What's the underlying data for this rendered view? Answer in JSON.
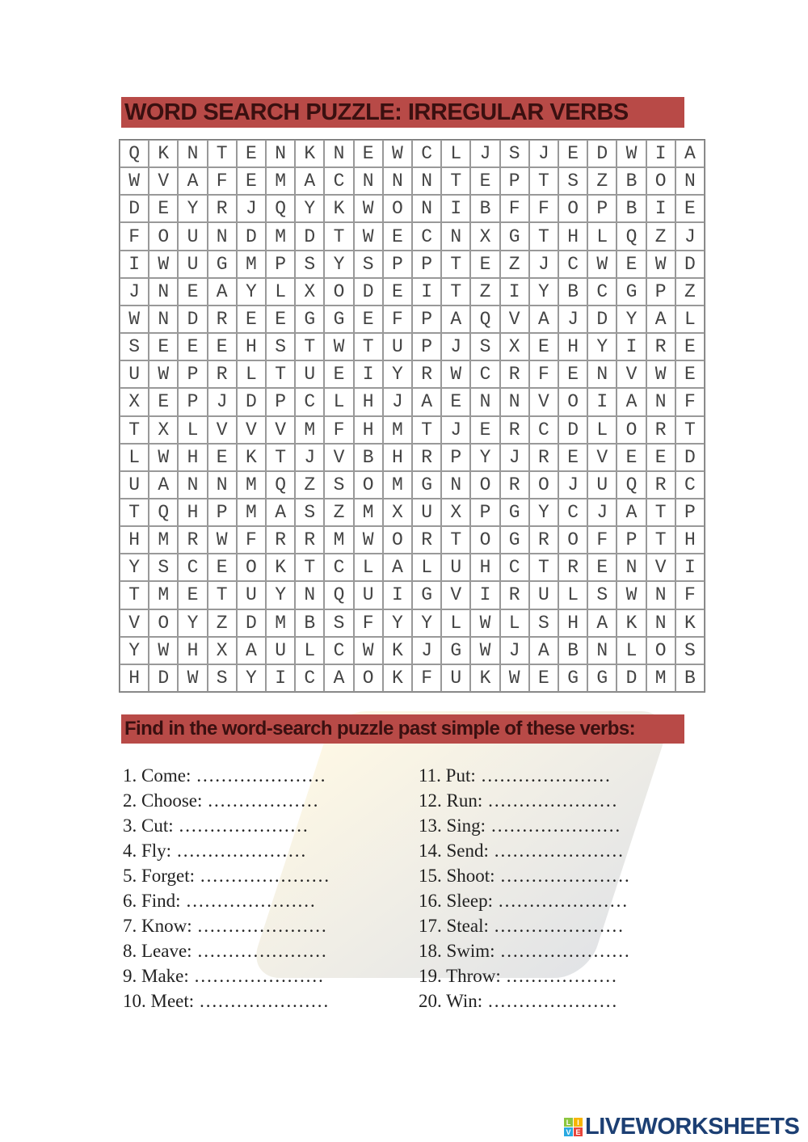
{
  "title": "WORD SEARCH PUZZLE: IRREGULAR VERBS",
  "grid": [
    "QKNTENKNEWCLJSJEDWIA",
    "WVAFEMACNNNTEPTSZBON",
    "DEYRJQYKWONIBFFOPBIE",
    "FOUNDMDTWECNXGTHLQZJ",
    "IWUGMPSYSPPTEZJCWEWD",
    "JNEAYLXODEITZIYBCGPZ",
    "WNDREEGGEFPAQVAJDYAL",
    "SEEEHSTWTUPJSXEHYIRE",
    "UWPRLTUEIYRWCRFENVWE",
    "XEPJDPCLHJAENNVOIANF",
    "TXLVVVMFHMTJERCDLORT",
    "LWHEKTJVBHRPYJREVEED",
    "UANNMQZSOMGNOROJUQRC",
    "TQHPMASZMXUXPGYCJATP",
    "HMRWFRRMWORTOGROFPTH",
    "YSCEOKTCLALUHCTRENVI",
    "TMETUYNQUIGVIRULSWNF",
    "VOYZDMBSFYYLWLSHAKNK",
    "YWHXAULCWKJGWJABNLOS",
    "HDWSYICAOKFUKWEGGDMB"
  ],
  "instructions": "Find in the word-search puzzle past simple of these verbs:",
  "verbs_left": [
    {
      "label": "1. Come:",
      "blank": "…………………"
    },
    {
      "label": "2. Choose:",
      "blank": "………………"
    },
    {
      "label": "3. Cut:",
      "blank": "…………………"
    },
    {
      "label": "4. Fly:",
      "blank": "…………………"
    },
    {
      "label": "5. Forget:",
      "blank": "…………………"
    },
    {
      "label": "6. Find:",
      "blank": "…………………"
    },
    {
      "label": "7. Know:",
      "blank": "…………………"
    },
    {
      "label": "8. Leave:",
      "blank": "…………………"
    },
    {
      "label": "9. Make:",
      "blank": "…………………"
    },
    {
      "label": "10. Meet:",
      "blank": "…………………"
    }
  ],
  "verbs_right": [
    {
      "label": "11. Put:",
      "blank": "…………………"
    },
    {
      "label": "12. Run:",
      "blank": "…………………"
    },
    {
      "label": "13. Sing:",
      "blank": "…………………"
    },
    {
      "label": "14. Send:",
      "blank": "…………………"
    },
    {
      "label": "15. Shoot:",
      "blank": "…………………"
    },
    {
      "label": "16. Sleep:",
      "blank": "…………………"
    },
    {
      "label": "17. Steal:",
      "blank": "…………………"
    },
    {
      "label": "18. Swim:",
      "blank": "…………………"
    },
    {
      "label": "19. Throw:",
      "blank": "………………"
    },
    {
      "label": "20. Win:",
      "blank": "…………………"
    }
  ],
  "logo": {
    "text": "LIVEWORKSHEETS",
    "badge_letters": [
      "L",
      "I",
      "V",
      "E"
    ],
    "badge_colors": [
      "#8cc63f",
      "#f7b500",
      "#29a9e1",
      "#e8463c"
    ],
    "color": "#1c3f73"
  },
  "colors": {
    "header_bar": "#b84a47"
  }
}
